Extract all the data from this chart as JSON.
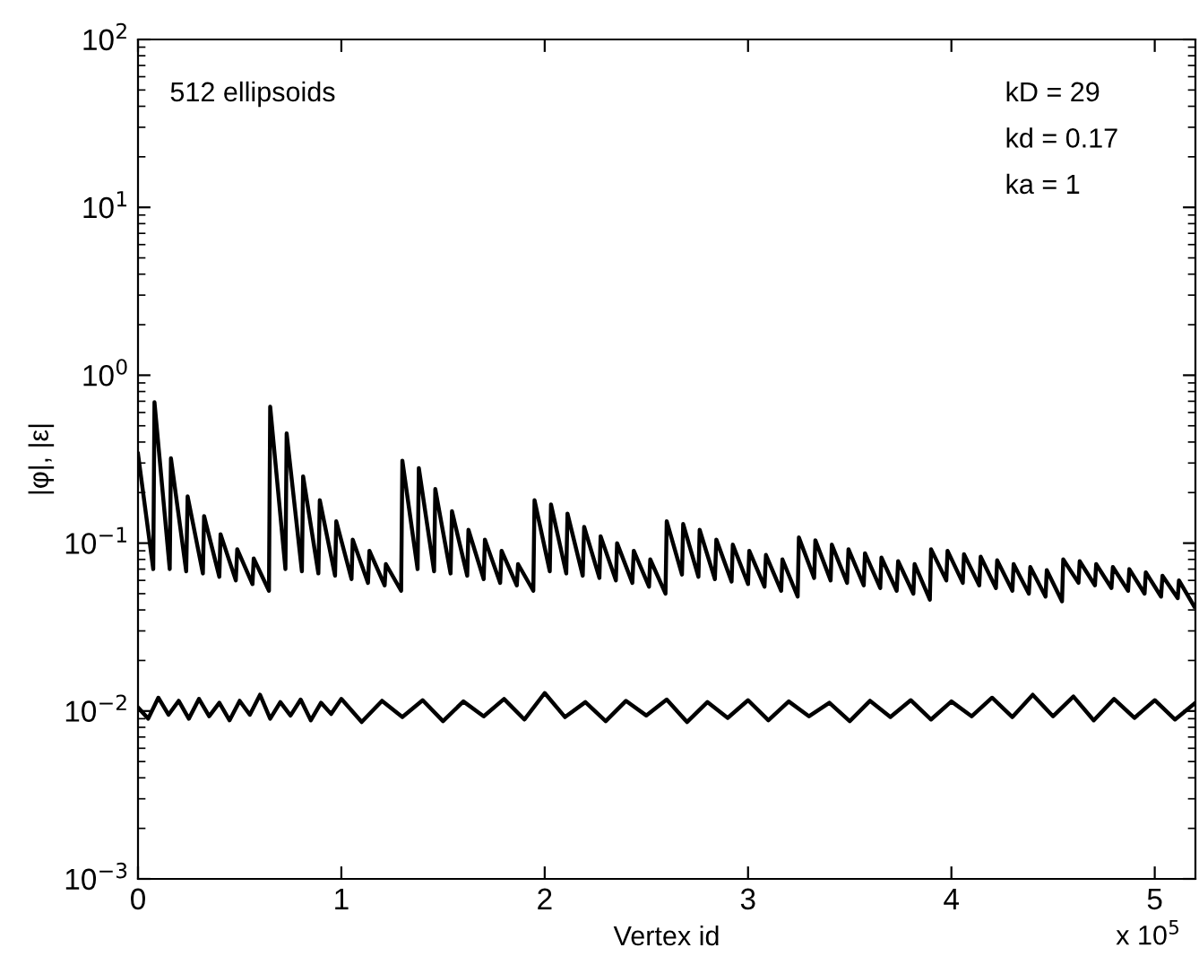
{
  "chart_data": {
    "type": "line",
    "xlabel": "Vertex id",
    "ylabel": "|φ|, |ε|",
    "log": "y",
    "grid": false,
    "legend": false,
    "marker": "none",
    "line_style": "solid",
    "xlim": [
      0,
      5.2
    ],
    "ylim": [
      0.001,
      100
    ],
    "xticks": [
      0,
      1,
      2,
      3,
      4,
      5
    ],
    "yticks": [
      {
        "value": 0.001,
        "label": "10$^{−3}$"
      },
      {
        "value": 0.01,
        "label": "10$^{−2}$"
      },
      {
        "value": 0.1,
        "label": "10$^{−1}$"
      },
      {
        "value": 1,
        "label": "10$^{0}$"
      },
      {
        "value": 10,
        "label": "10$^{1}$"
      },
      {
        "value": 100,
        "label": "10$^{2}$"
      }
    ],
    "annotations": [
      "512 ellipsoids",
      "kD = 29",
      "kd = 0.17",
      "ka = 1",
      "x 10$^{5}$"
    ],
    "series": [
      {
        "color": "#000000",
        "x": [
          0,
          0.075,
          0.081,
          0.156,
          0.162,
          0.237,
          0.244,
          0.319,
          0.325,
          0.4,
          0.406,
          0.481,
          0.488,
          0.563,
          0.569,
          0.644,
          0.65,
          0.725,
          0.731,
          0.806,
          0.812,
          0.887,
          0.894,
          0.969,
          0.975,
          1.05,
          1.056,
          1.131,
          1.138,
          1.213,
          1.219,
          1.294,
          1.3,
          1.375,
          1.381,
          1.456,
          1.462,
          1.537,
          1.544,
          1.619,
          1.625,
          1.7,
          1.706,
          1.781,
          1.788,
          1.863,
          1.869,
          1.944,
          1.95,
          2.025,
          2.031,
          2.106,
          2.112,
          2.187,
          2.194,
          2.269,
          2.275,
          2.35,
          2.356,
          2.431,
          2.438,
          2.513,
          2.519,
          2.594,
          2.6,
          2.675,
          2.681,
          2.756,
          2.762,
          2.837,
          2.844,
          2.919,
          2.925,
          3.0,
          3.006,
          3.081,
          3.088,
          3.163,
          3.169,
          3.244,
          3.25,
          3.325,
          3.331,
          3.406,
          3.412,
          3.487,
          3.494,
          3.569,
          3.575,
          3.65,
          3.656,
          3.731,
          3.738,
          3.813,
          3.819,
          3.894,
          3.9,
          3.975,
          3.981,
          4.056,
          4.062,
          4.137,
          4.144,
          4.219,
          4.225,
          4.3,
          4.306,
          4.381,
          4.388,
          4.463,
          4.469,
          4.544,
          4.55,
          4.625,
          4.631,
          4.706,
          4.712,
          4.787,
          4.794,
          4.869,
          4.875,
          4.95,
          4.956,
          5.031,
          5.038,
          5.113,
          5.119,
          5.194
        ],
        "values": [
          0.34,
          0.07,
          0.69,
          0.07,
          0.32,
          0.068,
          0.19,
          0.066,
          0.145,
          0.063,
          0.113,
          0.06,
          0.092,
          0.057,
          0.081,
          0.052,
          0.65,
          0.07,
          0.45,
          0.068,
          0.25,
          0.066,
          0.18,
          0.064,
          0.135,
          0.061,
          0.105,
          0.058,
          0.09,
          0.056,
          0.075,
          0.052,
          0.31,
          0.07,
          0.28,
          0.068,
          0.21,
          0.066,
          0.155,
          0.064,
          0.12,
          0.061,
          0.105,
          0.058,
          0.09,
          0.056,
          0.075,
          0.052,
          0.18,
          0.068,
          0.17,
          0.066,
          0.15,
          0.064,
          0.125,
          0.062,
          0.11,
          0.06,
          0.1,
          0.058,
          0.09,
          0.055,
          0.08,
          0.05,
          0.135,
          0.065,
          0.13,
          0.063,
          0.12,
          0.061,
          0.105,
          0.059,
          0.098,
          0.057,
          0.09,
          0.055,
          0.085,
          0.052,
          0.08,
          0.048,
          0.108,
          0.062,
          0.104,
          0.06,
          0.098,
          0.058,
          0.092,
          0.056,
          0.087,
          0.054,
          0.082,
          0.052,
          0.078,
          0.05,
          0.075,
          0.046,
          0.092,
          0.06,
          0.09,
          0.058,
          0.086,
          0.056,
          0.083,
          0.054,
          0.079,
          0.052,
          0.075,
          0.05,
          0.072,
          0.048,
          0.069,
          0.045,
          0.08,
          0.058,
          0.078,
          0.056,
          0.075,
          0.054,
          0.072,
          0.052,
          0.07,
          0.05,
          0.067,
          0.048,
          0.064,
          0.047,
          0.06,
          0.042
        ]
      },
      {
        "color": "#000000",
        "x": [
          0,
          0.05,
          0.1,
          0.15,
          0.2,
          0.25,
          0.3,
          0.35,
          0.4,
          0.45,
          0.5,
          0.55,
          0.6,
          0.65,
          0.7,
          0.75,
          0.8,
          0.85,
          0.9,
          0.95,
          1.0,
          1.1,
          1.2,
          1.3,
          1.4,
          1.5,
          1.6,
          1.7,
          1.8,
          1.9,
          2.0,
          2.1,
          2.2,
          2.3,
          2.4,
          2.5,
          2.6,
          2.7,
          2.8,
          2.9,
          3.0,
          3.1,
          3.2,
          3.3,
          3.4,
          3.5,
          3.6,
          3.7,
          3.8,
          3.9,
          4.0,
          4.1,
          4.2,
          4.3,
          4.4,
          4.5,
          4.6,
          4.7,
          4.8,
          4.9,
          5.0,
          5.1,
          5.2
        ],
        "values": [
          0.0105,
          0.009,
          0.012,
          0.0095,
          0.0115,
          0.009,
          0.0118,
          0.0093,
          0.0112,
          0.0088,
          0.0115,
          0.0095,
          0.0125,
          0.009,
          0.0113,
          0.0094,
          0.0117,
          0.0088,
          0.0112,
          0.0096,
          0.0118,
          0.0086,
          0.0115,
          0.0092,
          0.0116,
          0.0087,
          0.0114,
          0.0093,
          0.0118,
          0.0089,
          0.0128,
          0.0092,
          0.0113,
          0.0087,
          0.0115,
          0.0094,
          0.0117,
          0.0086,
          0.0113,
          0.0091,
          0.0116,
          0.0088,
          0.0114,
          0.0093,
          0.0112,
          0.0087,
          0.0115,
          0.0092,
          0.0116,
          0.0089,
          0.0114,
          0.0093,
          0.012,
          0.0092,
          0.0125,
          0.0093,
          0.0122,
          0.0088,
          0.0118,
          0.0091,
          0.0116,
          0.0089,
          0.0112
        ]
      }
    ]
  }
}
